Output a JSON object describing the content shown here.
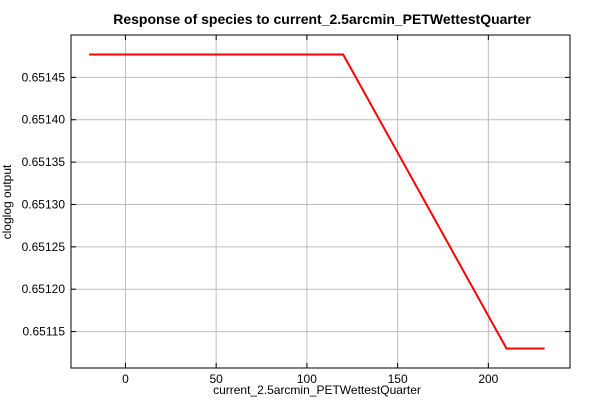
{
  "chart_data": {
    "type": "line",
    "title": "Response of species to current_2.5arcmin_PETWettestQuarter",
    "xlabel": "current_2.5arcmin_PETWettestQuarter",
    "ylabel": "cloglog output",
    "xlim": [
      -30,
      245
    ],
    "ylim": [
      0.651107,
      0.6515
    ],
    "xticks": [
      0,
      50,
      100,
      150,
      200
    ],
    "yticks": [
      0.65115,
      0.6512,
      0.65125,
      0.6513,
      0.65135,
      0.6514,
      0.65145
    ],
    "ytick_labels": [
      "0.65115",
      "0.65120",
      "0.65125",
      "0.65130",
      "0.65135",
      "0.65140",
      "0.65145"
    ],
    "grid": true,
    "series": [
      {
        "color": "#ff0000",
        "x": [
          -20,
          120,
          210,
          231
        ],
        "y": [
          0.651477,
          0.651477,
          0.65113,
          0.65113
        ]
      }
    ]
  }
}
